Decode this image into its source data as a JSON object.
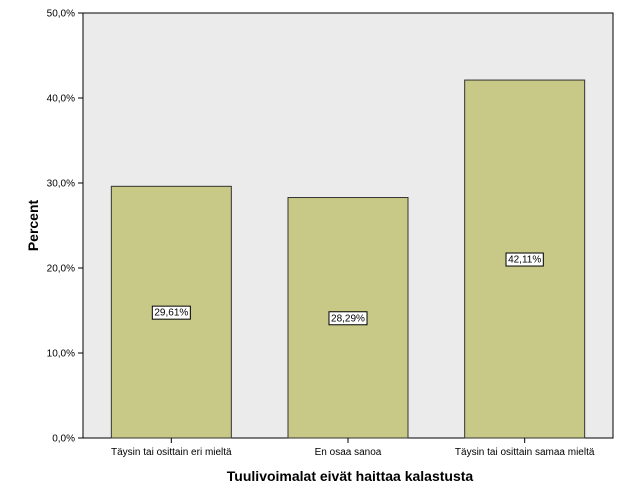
{
  "chart_data": {
    "type": "bar",
    "title": "",
    "xlabel": "Tuulivoimalat eivät haittaa kalastusta",
    "ylabel": "Percent",
    "categories": [
      "Täysin tai osittain eri mieltä",
      "En osaa sanoa",
      "Täysin tai osittain samaa mieltä"
    ],
    "values": [
      29.61,
      28.29,
      42.11
    ],
    "data_labels": [
      "29,61%",
      "28,29%",
      "42,11%"
    ],
    "ylim": [
      0,
      50
    ],
    "yticks": [
      0,
      10,
      20,
      30,
      40,
      50
    ],
    "ytick_labels": [
      "0,0%",
      "10,0%",
      "20,0%",
      "30,0%",
      "40,0%",
      "50,0%"
    ],
    "grid": false,
    "legend": "none",
    "colors": {
      "plot_background": "#ebebeb",
      "bar_fill": "#c8c987",
      "bar_stroke": "#333333",
      "axis": "#000000"
    }
  }
}
